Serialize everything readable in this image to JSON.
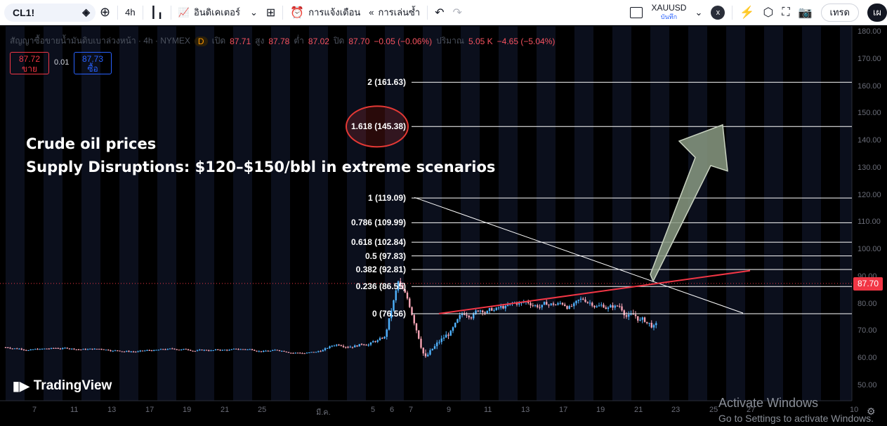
{
  "toolbar": {
    "symbol": "CL1!",
    "interval": "4h",
    "indicators_label": "อินดิเคเตอร์",
    "alerts_label": "การแจ้งเตือน",
    "replay_label": "การเล่นซ้ำ",
    "compare_symbol": "XAUUSD",
    "compare_sub": "บันทึก",
    "compare_close": "x",
    "trade_label": "เทรด",
    "publish_label": "เผ"
  },
  "legend": {
    "title": "สัญญาซื้อขายน้ำมันดิบเบาล่วงหน้า · 4h · NYMEX",
    "source_badge": "D",
    "open_label": "เปิด",
    "open": "87.71",
    "high_label": "สูง",
    "high": "87.78",
    "low_label": "ต่ำ",
    "low": "87.02",
    "close_label": "ปิด",
    "close": "87.70",
    "change": "−0.05 (−0.06%)",
    "volume_label": "ปริมาณ",
    "volume": "5.05 K",
    "volume_change": "−4.65 (−5.04%)"
  },
  "trade": {
    "sell_price": "87.72",
    "sell_label": "ขาย",
    "spread": "0.01",
    "buy_price": "87.73",
    "buy_label": "ซื้อ"
  },
  "headline": {
    "line1": "Crude oil prices",
    "line2": "Supply Disruptions: $120–$150/bbl in extreme scenarios"
  },
  "fib_levels": [
    {
      "label": "2 (161.63)",
      "price": 161.63
    },
    {
      "label": "1.618 (145.38)",
      "price": 145.38
    },
    {
      "label": "1 (119.09)",
      "price": 119.09
    },
    {
      "label": "0.786 (109.99)",
      "price": 109.99
    },
    {
      "label": "0.618 (102.84)",
      "price": 102.84
    },
    {
      "label": "0.5 (97.83)",
      "price": 97.83
    },
    {
      "label": "0.382 (92.81)",
      "price": 92.81
    },
    {
      "label": "0.236 (86.55)",
      "price": 86.55
    },
    {
      "label": "0 (76.56)",
      "price": 76.56
    }
  ],
  "price_axis": [
    "180.00",
    "170.00",
    "160.00",
    "150.00",
    "140.00",
    "130.00",
    "120.00",
    "110.00",
    "100.00",
    "90.00",
    "80.00",
    "70.00",
    "60.00",
    "50.00"
  ],
  "last_price": "87.70",
  "time_axis": [
    "7",
    "11",
    "13",
    "17",
    "19",
    "21",
    "25",
    "มี.ค.",
    "5",
    "6",
    "7",
    "9",
    "11",
    "13",
    "17",
    "19",
    "21",
    "23",
    "25",
    "27",
    "10"
  ],
  "brand": "TradingView",
  "watermark": {
    "line1": "Activate Windows",
    "line2": "Go to Settings to activate Windows."
  },
  "colors": {
    "bull": "#4fb3ff",
    "bear": "#f7a5b6",
    "support": "#f23645",
    "arrow": "#8a9a82",
    "circle": "#e53935"
  }
}
